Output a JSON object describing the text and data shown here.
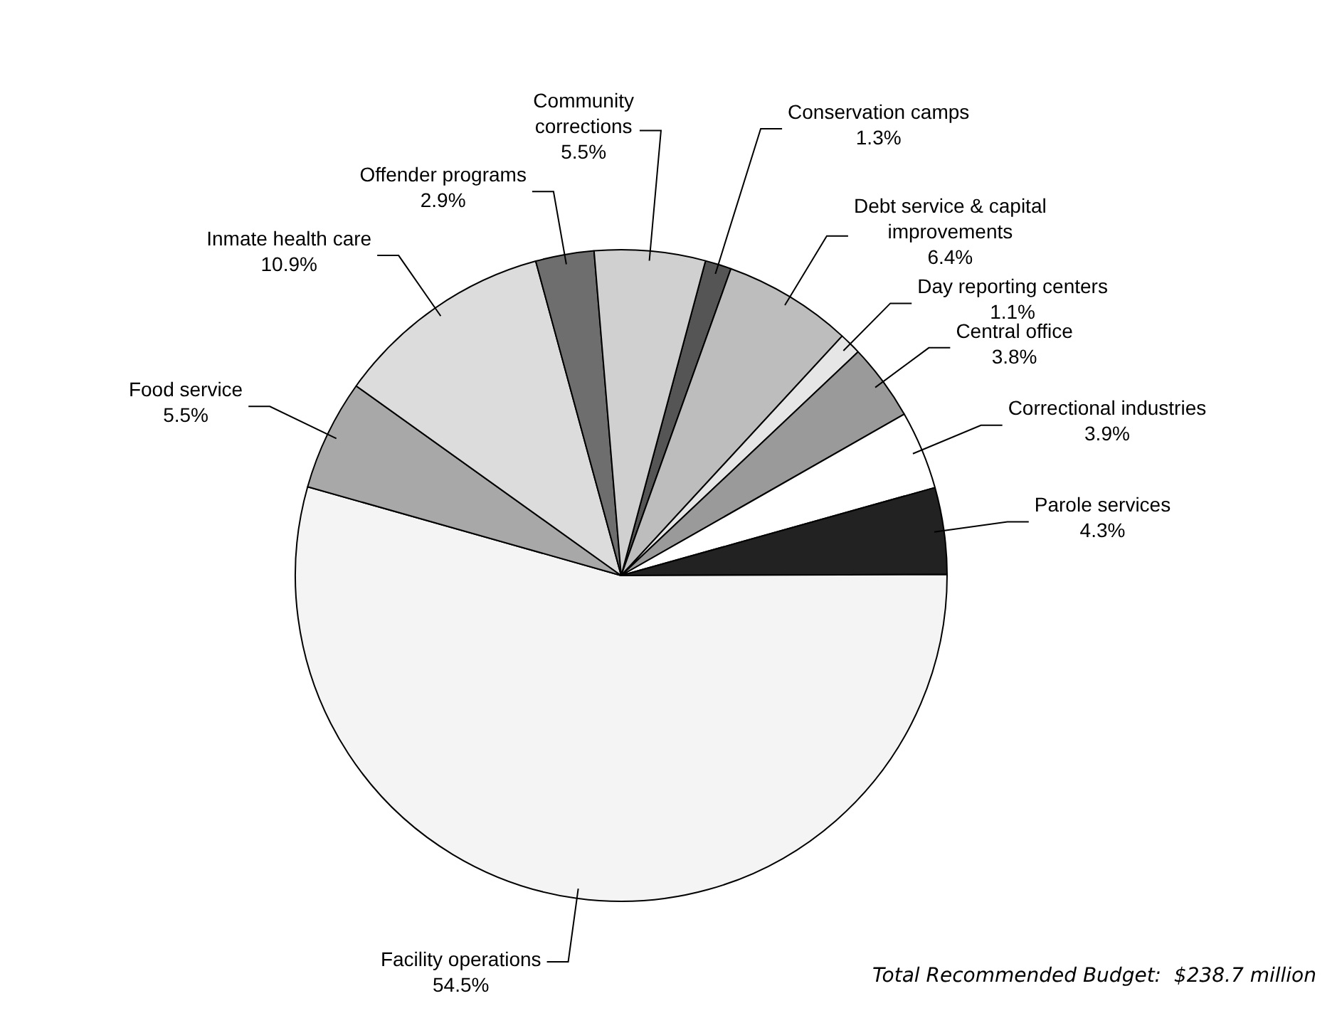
{
  "chart_data": {
    "type": "pie",
    "categories": [
      "Conservation camps",
      "Debt service & capital improvements",
      "Day reporting centers",
      "Central office",
      "Correctional industries",
      "Parole services",
      "Facility operations",
      "Food service",
      "Inmate health care",
      "Offender programs",
      "Community corrections"
    ],
    "values": [
      1.3,
      6.4,
      1.1,
      3.8,
      3.9,
      4.3,
      54.5,
      5.5,
      10.9,
      2.9,
      5.5
    ],
    "value_labels": [
      "1.3%",
      "6.4%",
      "1.1%",
      "3.8%",
      "3.9%",
      "4.3%",
      "54.5%",
      "5.5%",
      "10.9%",
      "2.9%",
      "5.5%"
    ],
    "colors": [
      "#555555",
      "#bdbdbd",
      "#e6e6e6",
      "#9a9a9a",
      "#ffffff",
      "#222222",
      "#f4f4f4",
      "#a8a8a8",
      "#dcdcdc",
      "#6e6e6e",
      "#d0d0d0"
    ],
    "legend": false,
    "annotations": [
      "Total Recommended Budget:  $238.7 million"
    ]
  }
}
